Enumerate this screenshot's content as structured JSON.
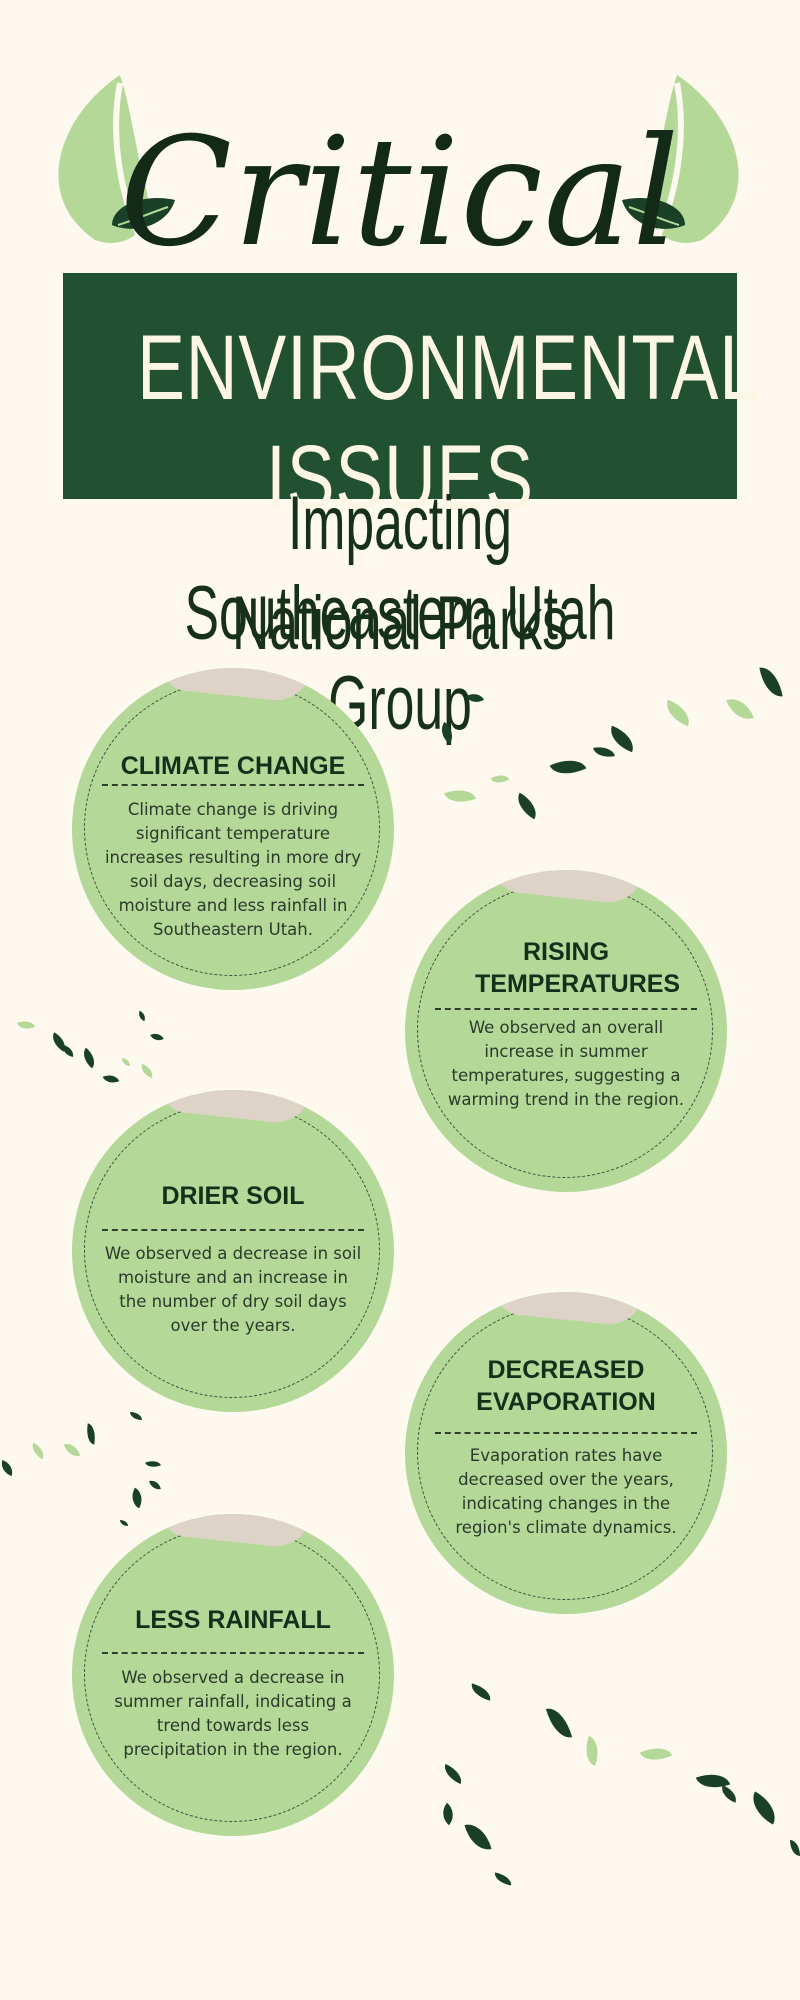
{
  "header": {
    "script_title": "Critical",
    "banner_title": "ENVIRONMENTAL ISSUES",
    "subtitle_line1": "Impacting Southeastern Utah Group",
    "subtitle_line2": "National Parks"
  },
  "colors": {
    "background": "#fdf9ef",
    "banner": "#225131",
    "circle": "#b4d898",
    "leaf_dark": "#1a4128",
    "leaf_light": "#b4d898",
    "curl": "#ddd3c7"
  },
  "issues": [
    {
      "title": "CLIMATE CHANGE",
      "body": "Climate change is driving significant temperature increases resulting in more dry soil days, decreasing soil moisture and less rainfall in Southeastern Utah."
    },
    {
      "title": "RISING TEMPERATURES",
      "body": "We observed an overall increase in summer temperatures, suggesting a warming trend in the region."
    },
    {
      "title": "DRIER SOIL",
      "body": "We observed a decrease in soil moisture and an increase in the number of dry soil days over the years."
    },
    {
      "title": "DECREASED EVAPORATION",
      "body": "Evaporation rates have decreased over the years, indicating changes in the region's climate dynamics."
    },
    {
      "title": "LESS RAINFALL",
      "body": "We observed a decrease in summer rainfall, indicating a trend towards less precipitation in the region."
    }
  ]
}
